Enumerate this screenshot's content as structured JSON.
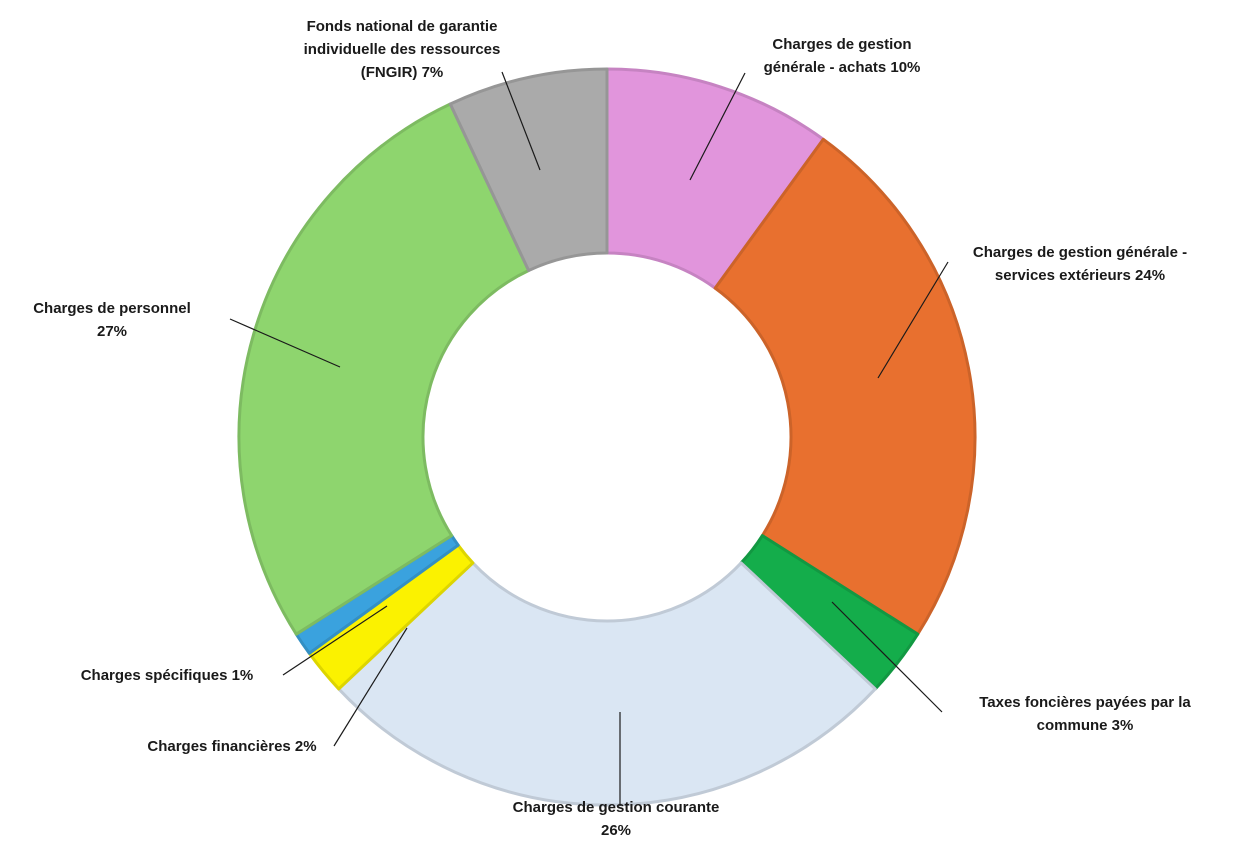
{
  "chart_data": {
    "type": "pie",
    "variant": "donut",
    "slices": [
      {
        "label": "Charges de gestion générale - achats",
        "value": 10,
        "value_label": "10%",
        "color": "#E195DC",
        "label_lines": [
          "Charges de gestion",
          "générale - achats 10%"
        ]
      },
      {
        "label": "Charges de gestion générale - services extérieurs",
        "value": 24,
        "value_label": "24%",
        "color": "#E8702F",
        "label_lines": [
          "Charges de gestion générale -",
          "services extérieurs 24%"
        ]
      },
      {
        "label": "Taxes foncières payées par la commune",
        "value": 3,
        "value_label": "3%",
        "color": "#14AD4B",
        "label_lines": [
          "Taxes foncières payées par la",
          "commune 3%"
        ]
      },
      {
        "label": "Charges de gestion courante",
        "value": 26,
        "value_label": "26%",
        "color": "#DAE6F3",
        "label_lines": [
          "Charges de gestion courante",
          "26%"
        ]
      },
      {
        "label": "Charges financières",
        "value": 2,
        "value_label": "2%",
        "color": "#FBF200",
        "label_lines": [
          "Charges financières 2%"
        ]
      },
      {
        "label": "Charges spécifiques",
        "value": 1,
        "value_label": "1%",
        "color": "#3AA2DE",
        "label_lines": [
          "Charges spécifiques 1%"
        ]
      },
      {
        "label": "Charges de personnel",
        "value": 27,
        "value_label": "27%",
        "color": "#8ED56E",
        "label_lines": [
          "Charges de personnel",
          "27%"
        ]
      },
      {
        "label": "Fonds national de garantie individuelle des ressources (FNGIR)",
        "value": 7,
        "value_label": "7%",
        "color": "#AAAAAA",
        "label_lines": [
          "Fonds national de garantie",
          "individuelle des ressources",
          "(FNGIR) 7%"
        ]
      }
    ],
    "start": "12 o'clock",
    "direction": "clockwise",
    "legend": "none",
    "title": ""
  }
}
